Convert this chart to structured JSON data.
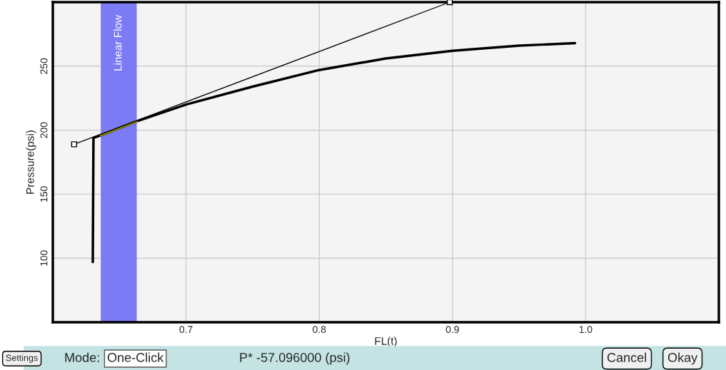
{
  "chart_data": {
    "type": "line",
    "xlabel": "FL(t)",
    "ylabel": "Pressure(psi)",
    "xlim": [
      0.6,
      1.1
    ],
    "xticks": [
      0.7,
      0.8,
      0.9,
      {
        "value": 1.0,
        "label": "1.0"
      }
    ],
    "ylim": [
      50,
      300
    ],
    "yticks": [
      100,
      150,
      200,
      250
    ],
    "grid": true,
    "legend": false,
    "series": [
      {
        "color": "#000000",
        "x": [
          0.63,
          0.6305,
          0.636,
          0.663,
          0.7,
          0.75,
          0.8,
          0.85,
          0.9,
          0.95,
          0.992
        ],
        "values": [
          97,
          194,
          196,
          207,
          220,
          234,
          247,
          256,
          262,
          266,
          268
        ]
      },
      {
        "color": "#808000",
        "x": [
          0.636,
          0.663
        ],
        "values": [
          196,
          207
        ]
      },
      {
        "color": "#000000",
        "x": [
          0.616,
          0.898
        ],
        "values": [
          189,
          300
        ],
        "marker": "square"
      }
    ],
    "bands": [
      {
        "axis": "x",
        "from": 0.636,
        "to": 0.663,
        "label": "Linear Flow",
        "color": "#7b7bf5"
      }
    ],
    "annotations": [
      "Settings",
      "Mode:",
      "One-Click",
      "P* -57.096000 (psi)",
      "Cancel",
      "Okay"
    ]
  }
}
